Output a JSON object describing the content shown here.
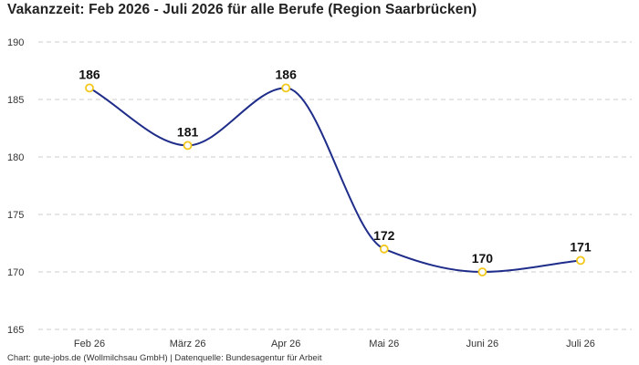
{
  "title": "Vakanzzeit: Feb 2026 - Juli 2026 für alle Berufe (Region Saarbrücken)",
  "footer": "Chart: gute-jobs.de (Wollmilchsau GmbH) | Datenquelle: Bundesagentur für Arbeit",
  "colors": {
    "line": "#1f2d8a",
    "marker": "#f2c81d",
    "grid": "#cccccc"
  },
  "chart_data": {
    "type": "line",
    "title": "Vakanzzeit: Feb 2026 - Juli 2026 für alle Berufe (Region Saarbrücken)",
    "categories": [
      "Feb 26",
      "März 26",
      "Apr 26",
      "Mai 26",
      "Juni 26",
      "Juli 26"
    ],
    "series": [
      {
        "values": [
          186,
          181,
          186,
          172,
          170,
          171
        ]
      }
    ],
    "ylim": [
      165,
      190
    ],
    "yticks": [
      165,
      170,
      175,
      180,
      185,
      190
    ],
    "grid": true,
    "smooth": true,
    "data_labels": true
  }
}
